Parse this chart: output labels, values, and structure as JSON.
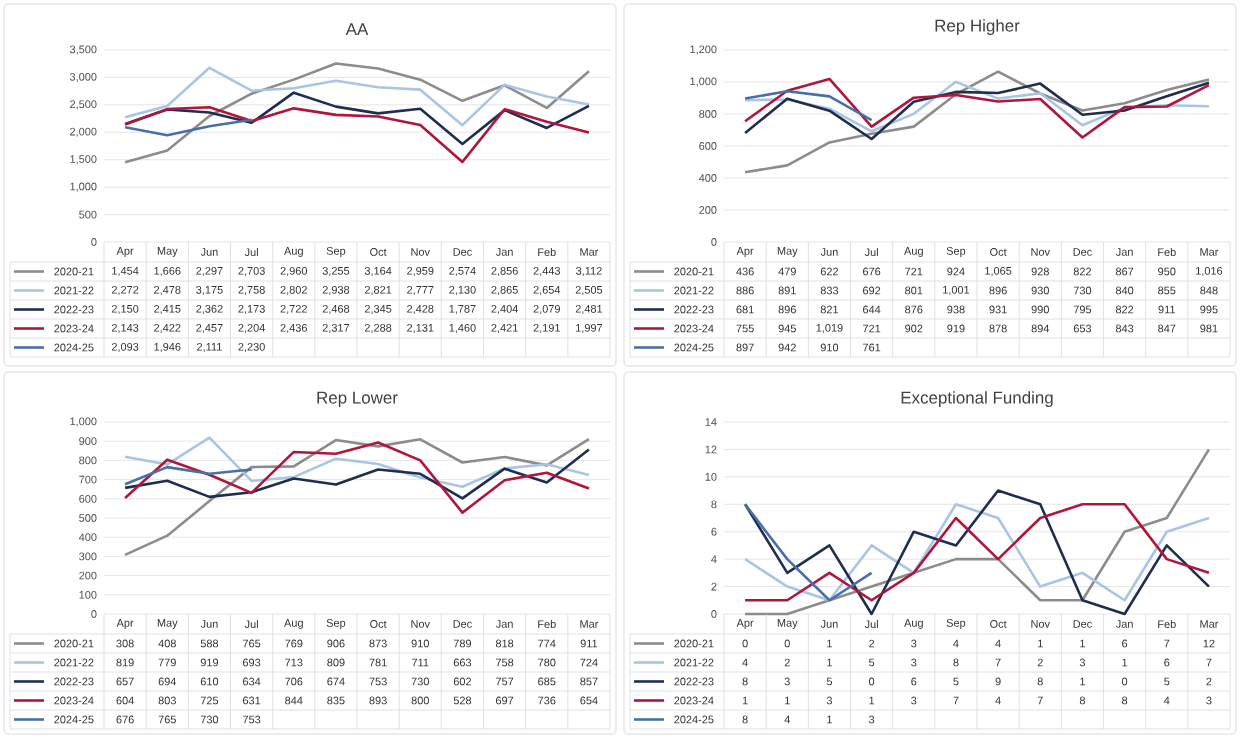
{
  "chart_data": [
    {
      "type": "line",
      "title": "AA",
      "categories": [
        "Apr",
        "May",
        "Jun",
        "Jul",
        "Aug",
        "Sep",
        "Oct",
        "Nov",
        "Dec",
        "Jan",
        "Feb",
        "Mar"
      ],
      "ylim": [
        0,
        3500
      ],
      "yticks": [
        0,
        500,
        {
          "value": 1000,
          "label": "1,000"
        },
        {
          "value": 1500,
          "label": "1,500"
        },
        {
          "value": 2000,
          "label": "2,000"
        },
        {
          "value": 2500,
          "label": "2,500"
        },
        {
          "value": 3000,
          "label": "3,000"
        },
        {
          "value": 3500,
          "label": "3,500"
        }
      ],
      "grid": "y",
      "legend": "bottom",
      "data_labels": true,
      "series": [
        {
          "name": "2020-21",
          "color": "#8c8c8c",
          "values": [
            1454,
            1666,
            2297,
            2703,
            2960,
            3255,
            3164,
            2959,
            2574,
            2856,
            2443,
            3112
          ],
          "value_labels": [
            "1,454",
            "1,666",
            "2,297",
            "2,703",
            "2,960",
            "3,255",
            "3,164",
            "2,959",
            "2,574",
            "2,856",
            "2,443",
            "3,112"
          ]
        },
        {
          "name": "2021-22",
          "color": "#a9c4e4",
          "values": [
            2272,
            2478,
            3175,
            2758,
            2802,
            2938,
            2821,
            2777,
            2130,
            2865,
            2654,
            2505
          ],
          "value_labels": [
            "2,272",
            "2,478",
            "3,175",
            "2,758",
            "2,802",
            "2,938",
            "2,821",
            "2,777",
            "2,130",
            "2,865",
            "2,654",
            "2,505"
          ]
        },
        {
          "name": "2022-23",
          "color": "#1f2d4e",
          "values": [
            2150,
            2415,
            2362,
            2173,
            2722,
            2468,
            2345,
            2428,
            1787,
            2404,
            2079,
            2481
          ],
          "value_labels": [
            "2,150",
            "2,415",
            "2,362",
            "2,173",
            "2,722",
            "2,468",
            "2,345",
            "2,428",
            "1,787",
            "2,404",
            "2,079",
            "2,481"
          ]
        },
        {
          "name": "2023-24",
          "color": "#b0163c",
          "values": [
            2143,
            2422,
            2457,
            2204,
            2436,
            2317,
            2288,
            2131,
            1460,
            2421,
            2191,
            1997
          ],
          "value_labels": [
            "2,143",
            "2,422",
            "2,457",
            "2,204",
            "2,436",
            "2,317",
            "2,288",
            "2,131",
            "1,460",
            "2,421",
            "2,191",
            "1,997"
          ]
        },
        {
          "name": "2024-25",
          "color": "#4a6fa8",
          "values": [
            2093,
            1946,
            2111,
            2230,
            null,
            null,
            null,
            null,
            null,
            null,
            null,
            null
          ],
          "value_labels": [
            "2,093",
            "1,946",
            "2,111",
            "2,230",
            null,
            null,
            null,
            null,
            null,
            null,
            null,
            null
          ]
        }
      ]
    },
    {
      "type": "line",
      "title": "Rep Higher",
      "categories": [
        "Apr",
        "May",
        "Jun",
        "Jul",
        "Aug",
        "Sep",
        "Oct",
        "Nov",
        "Dec",
        "Jan",
        "Feb",
        "Mar"
      ],
      "ylim": [
        0,
        1200
      ],
      "yticks": [
        0,
        200,
        400,
        600,
        800,
        {
          "value": 1000,
          "label": "1,000"
        },
        {
          "value": 1200,
          "label": "1,200"
        }
      ],
      "grid": "y",
      "legend": "bottom",
      "data_labels": true,
      "series": [
        {
          "name": "2020-21",
          "color": "#8c8c8c",
          "values": [
            436,
            479,
            622,
            676,
            721,
            924,
            1065,
            928,
            822,
            867,
            950,
            1016
          ],
          "value_labels": [
            "436",
            "479",
            "622",
            "676",
            "721",
            "924",
            "1,065",
            "928",
            "822",
            "867",
            "950",
            "1,016"
          ]
        },
        {
          "name": "2021-22",
          "color": "#a9c4e4",
          "values": [
            886,
            891,
            833,
            692,
            801,
            1001,
            896,
            930,
            730,
            840,
            855,
            848
          ],
          "value_labels": [
            "886",
            "891",
            "833",
            "692",
            "801",
            "1,001",
            "896",
            "930",
            "730",
            "840",
            "855",
            "848"
          ]
        },
        {
          "name": "2022-23",
          "color": "#1f2d4e",
          "values": [
            681,
            896,
            821,
            644,
            876,
            938,
            931,
            990,
            795,
            822,
            911,
            995
          ]
        },
        {
          "name": "2023-24",
          "color": "#b0163c",
          "values": [
            755,
            945,
            1019,
            721,
            902,
            919,
            878,
            894,
            653,
            843,
            847,
            981
          ],
          "value_labels": [
            "755",
            "945",
            "1,019",
            "721",
            "902",
            "919",
            "878",
            "894",
            "653",
            "843",
            "847",
            "981"
          ]
        },
        {
          "name": "2024-25",
          "color": "#4a6fa8",
          "values": [
            897,
            942,
            910,
            761,
            null,
            null,
            null,
            null,
            null,
            null,
            null,
            null
          ]
        }
      ]
    },
    {
      "type": "line",
      "title": "Rep Lower",
      "categories": [
        "Apr",
        "May",
        "Jun",
        "Jul",
        "Aug",
        "Sep",
        "Oct",
        "Nov",
        "Dec",
        "Jan",
        "Feb",
        "Mar"
      ],
      "ylim": [
        0,
        1000
      ],
      "yticks": [
        0,
        100,
        200,
        300,
        400,
        500,
        600,
        700,
        800,
        900,
        {
          "value": 1000,
          "label": "1,000"
        }
      ],
      "grid": "y",
      "legend": "bottom",
      "data_labels": true,
      "series": [
        {
          "name": "2020-21",
          "color": "#8c8c8c",
          "values": [
            308,
            408,
            588,
            765,
            769,
            906,
            873,
            910,
            789,
            818,
            774,
            911
          ]
        },
        {
          "name": "2021-22",
          "color": "#a9c4e4",
          "values": [
            819,
            779,
            919,
            693,
            713,
            809,
            781,
            711,
            663,
            758,
            780,
            724
          ]
        },
        {
          "name": "2022-23",
          "color": "#1f2d4e",
          "values": [
            657,
            694,
            610,
            634,
            706,
            674,
            753,
            730,
            602,
            757,
            685,
            857
          ]
        },
        {
          "name": "2023-24",
          "color": "#b0163c",
          "values": [
            604,
            803,
            725,
            631,
            844,
            835,
            893,
            800,
            528,
            697,
            736,
            654
          ]
        },
        {
          "name": "2024-25",
          "color": "#4a6fa8",
          "values": [
            676,
            765,
            730,
            753,
            null,
            null,
            null,
            null,
            null,
            null,
            null,
            null
          ]
        }
      ]
    },
    {
      "type": "line",
      "title": "Exceptional Funding",
      "categories": [
        "Apr",
        "May",
        "Jun",
        "Jul",
        "Aug",
        "Sep",
        "Oct",
        "Nov",
        "Dec",
        "Jan",
        "Feb",
        "Mar"
      ],
      "ylim": [
        0,
        14
      ],
      "yticks": [
        0,
        2,
        4,
        6,
        8,
        10,
        12,
        14
      ],
      "grid": "y",
      "legend": "bottom",
      "data_labels": true,
      "series": [
        {
          "name": "2020-21",
          "color": "#8c8c8c",
          "values": [
            0,
            0,
            1,
            2,
            3,
            4,
            4,
            1,
            1,
            6,
            7,
            12
          ]
        },
        {
          "name": "2021-22",
          "color": "#a9c4e4",
          "values": [
            4,
            2,
            1,
            5,
            3,
            8,
            7,
            2,
            3,
            1,
            6,
            7
          ]
        },
        {
          "name": "2022-23",
          "color": "#1f2d4e",
          "values": [
            8,
            3,
            5,
            0,
            6,
            5,
            9,
            8,
            1,
            0,
            5,
            2
          ]
        },
        {
          "name": "2023-24",
          "color": "#b0163c",
          "values": [
            1,
            1,
            3,
            1,
            3,
            7,
            4,
            7,
            8,
            8,
            4,
            3
          ]
        },
        {
          "name": "2024-25",
          "color": "#4a6fa8",
          "values": [
            8,
            4,
            1,
            3,
            null,
            null,
            null,
            null,
            null,
            null,
            null,
            null
          ]
        }
      ]
    }
  ]
}
